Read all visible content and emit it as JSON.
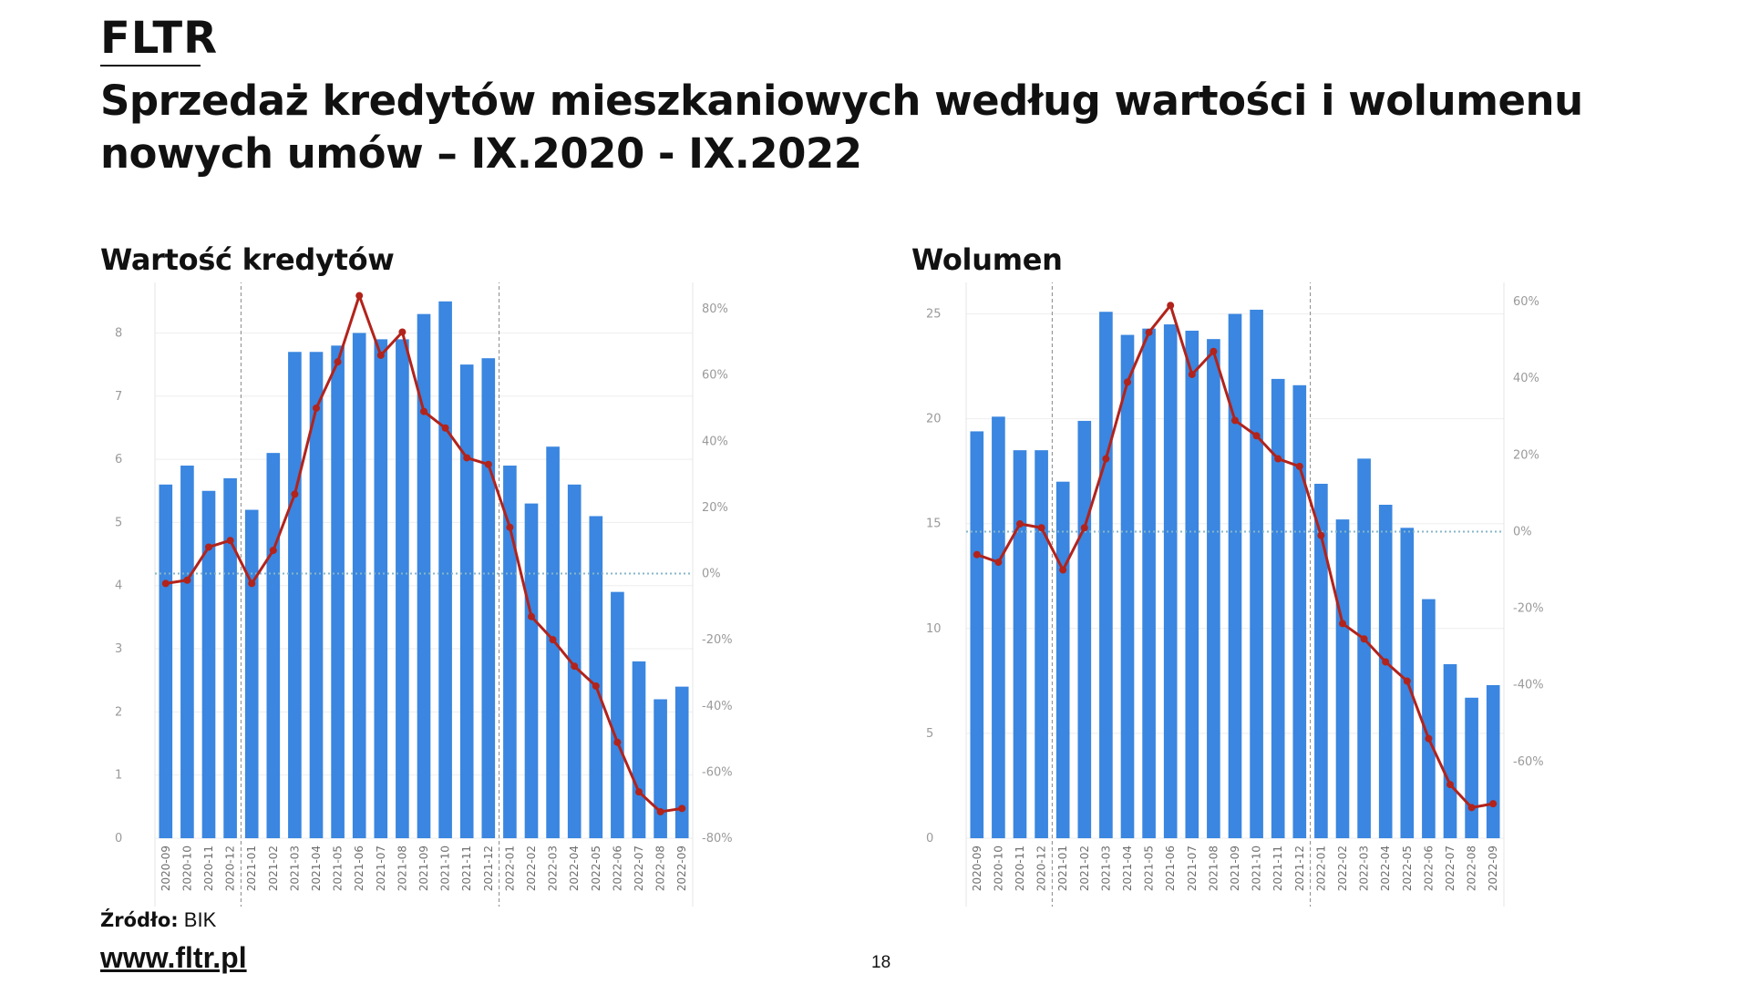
{
  "header": {
    "logo": "FLTR",
    "title": "Sprzedaż kredytów mieszkaniowych według wartości i wolumenu nowych umów – IX.2020 - IX.2022"
  },
  "footer": {
    "source_label": "Źródło:",
    "source_value": "BIK",
    "website": "www.fltr.pl",
    "page_number": "18"
  },
  "colors": {
    "bars": "#3a86e0",
    "line": "#b2231b",
    "zero_line": "#86b6c8",
    "divider": "#888888"
  },
  "chart_data": [
    {
      "type": "bar",
      "title": "Wartość kredytów",
      "categories": [
        "2020-09",
        "2020-10",
        "2020-11",
        "2020-12",
        "2021-01",
        "2021-02",
        "2021-03",
        "2021-04",
        "2021-05",
        "2021-06",
        "2021-07",
        "2021-08",
        "2021-09",
        "2021-10",
        "2021-11",
        "2021-12",
        "2022-01",
        "2022-02",
        "2022-03",
        "2022-04",
        "2022-05",
        "2022-06",
        "2022-07",
        "2022-08",
        "2022-09"
      ],
      "series": [
        {
          "type": "bar",
          "axis": "left",
          "values": [
            5.6,
            5.9,
            5.5,
            5.7,
            5.2,
            6.1,
            7.7,
            7.7,
            7.8,
            8.0,
            7.9,
            7.9,
            8.3,
            8.5,
            7.5,
            7.6,
            5.9,
            5.3,
            6.2,
            5.6,
            5.1,
            3.9,
            2.8,
            2.2,
            2.4
          ]
        },
        {
          "type": "line",
          "axis": "right",
          "unit": "%",
          "values": [
            -3,
            -2,
            8,
            10,
            -3,
            7,
            24,
            50,
            64,
            84,
            66,
            73,
            49,
            44,
            35,
            33,
            14,
            -13,
            -20,
            -28,
            -34,
            -51,
            -66,
            -72,
            -71
          ]
        }
      ],
      "ylim": [
        0,
        8.8
      ],
      "yticks": [
        0,
        1,
        2,
        3,
        4,
        5,
        6,
        7,
        8
      ],
      "y2lim": [
        -80,
        88
      ],
      "y2ticks": [
        "80%",
        "60%",
        "40%",
        "20%",
        "0%",
        "-20%",
        "-40%",
        "-60%",
        "-80%"
      ],
      "y2tick_values": [
        80,
        60,
        40,
        20,
        0,
        -20,
        -40,
        -60,
        -80
      ],
      "year_dividers_after": [
        "2020-12",
        "2021-12"
      ],
      "grid": true,
      "legend": "none"
    },
    {
      "type": "bar",
      "title": "Wolumen",
      "categories": [
        "2020-09",
        "2020-10",
        "2020-11",
        "2020-12",
        "2021-01",
        "2021-02",
        "2021-03",
        "2021-04",
        "2021-05",
        "2021-06",
        "2021-07",
        "2021-08",
        "2021-09",
        "2021-10",
        "2021-11",
        "2021-12",
        "2022-01",
        "2022-02",
        "2022-03",
        "2022-04",
        "2022-05",
        "2022-06",
        "2022-07",
        "2022-08",
        "2022-09"
      ],
      "series": [
        {
          "type": "bar",
          "axis": "left",
          "values": [
            19.4,
            20.1,
            18.5,
            18.5,
            17.0,
            19.9,
            25.1,
            24.0,
            24.3,
            24.5,
            24.2,
            23.8,
            25.0,
            25.2,
            21.9,
            21.6,
            16.9,
            15.2,
            18.1,
            15.9,
            14.8,
            11.4,
            8.3,
            6.7,
            7.3
          ]
        },
        {
          "type": "line",
          "axis": "right",
          "unit": "%",
          "values": [
            -6,
            -8,
            2,
            1,
            -10,
            1,
            19,
            39,
            52,
            59,
            41,
            47,
            29,
            25,
            19,
            17,
            -1,
            -24,
            -28,
            -34,
            -39,
            -54,
            -66,
            -72,
            -71
          ]
        }
      ],
      "ylim": [
        0,
        26.5
      ],
      "yticks": [
        0,
        5,
        10,
        15,
        20,
        25
      ],
      "y2lim": [
        -80,
        65
      ],
      "y2ticks": [
        "60%",
        "40%",
        "20%",
        "0%",
        "-20%",
        "-40%",
        "-60%"
      ],
      "y2tick_values": [
        60,
        40,
        20,
        0,
        -20,
        -40,
        -60
      ],
      "year_dividers_after": [
        "2020-12",
        "2021-12"
      ],
      "grid": true,
      "legend": "none"
    }
  ]
}
